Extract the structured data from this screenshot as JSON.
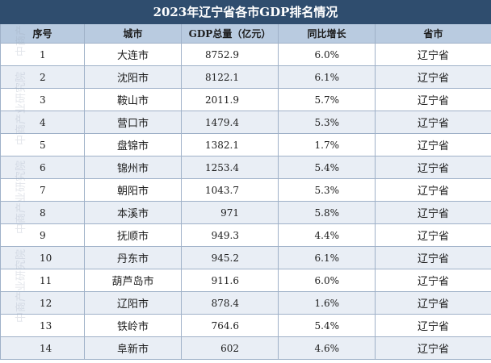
{
  "title": "2023年辽宁省各市GDP排名情况",
  "headers": [
    "序号",
    "城市",
    "GDP总量（亿元）",
    "同比增长",
    "省市"
  ],
  "rows": [
    [
      "1",
      "大连市",
      "8752.9",
      "6.0%",
      "辽宁省"
    ],
    [
      "2",
      "沈阳市",
      "8122.1",
      "6.1%",
      "辽宁省"
    ],
    [
      "3",
      "鞍山市",
      "2011.9",
      "5.7%",
      "辽宁省"
    ],
    [
      "4",
      "营口市",
      "1479.4",
      "5.3%",
      "辽宁省"
    ],
    [
      "5",
      "盘锦市",
      "1382.1",
      "1.7%",
      "辽宁省"
    ],
    [
      "6",
      "锦州市",
      "1253.4",
      "5.4%",
      "辽宁省"
    ],
    [
      "7",
      "朝阳市",
      "1043.7",
      "5.3%",
      "辽宁省"
    ],
    [
      "8",
      "本溪市",
      "971",
      "5.8%",
      "辽宁省"
    ],
    [
      "9",
      "抚顺市",
      "949.3",
      "4.4%",
      "辽宁省"
    ],
    [
      "10",
      "丹东市",
      "945.2",
      "6.1%",
      "辽宁省"
    ],
    [
      "11",
      "葫芦岛市",
      "911.6",
      "6.0%",
      "辽宁省"
    ],
    [
      "12",
      "辽阳市",
      "878.4",
      "1.6%",
      "辽宁省"
    ],
    [
      "13",
      "铁岭市",
      "764.6",
      "5.4%",
      "辽宁省"
    ],
    [
      "14",
      "阜新市",
      "602",
      "4.6%",
      "辽宁省"
    ]
  ],
  "watermark": "中商产业研究院",
  "colors": {
    "title_bg": "#2f4d6e",
    "header_bg": "#b9cbe0",
    "stripe": "#e9eef5"
  }
}
